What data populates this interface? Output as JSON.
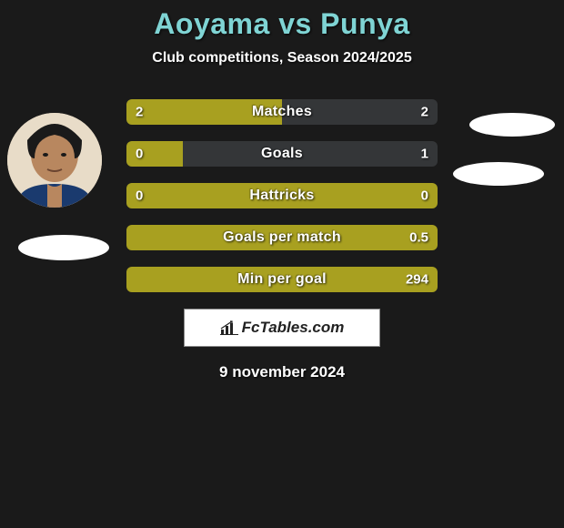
{
  "title": "Aoyama vs Punya",
  "subtitle": "Club competitions, Season 2024/2025",
  "date": "9 november 2024",
  "logo_text": "FcTables.com",
  "colors": {
    "left_bar": "#a8a020",
    "right_bar": "#343638",
    "background": "#1a1a1a",
    "title": "#7fd4d4",
    "text": "#ffffff",
    "logo_bg": "#ffffff"
  },
  "stats": [
    {
      "label": "Matches",
      "left_val": "2",
      "right_val": "2",
      "left_pct": 50,
      "right_pct": 50
    },
    {
      "label": "Goals",
      "left_val": "0",
      "right_val": "1",
      "left_pct": 18,
      "right_pct": 82
    },
    {
      "label": "Hattricks",
      "left_val": "0",
      "right_val": "0",
      "left_pct": 100,
      "right_pct": 0
    },
    {
      "label": "Goals per match",
      "left_val": "",
      "right_val": "0.5",
      "left_pct": 100,
      "right_pct": 0
    },
    {
      "label": "Min per goal",
      "left_val": "",
      "right_val": "294",
      "left_pct": 100,
      "right_pct": 0
    }
  ],
  "layout": {
    "stat_bar_width": 342,
    "stat_bar_height": 28,
    "stat_gap": 18,
    "border_radius": 6,
    "label_fontsize": 16,
    "val_fontsize": 15
  }
}
